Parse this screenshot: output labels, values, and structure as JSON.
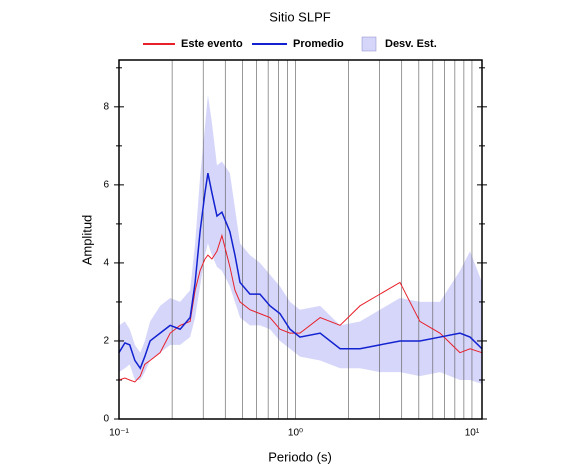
{
  "chart_data": {
    "type": "line",
    "title": "Sitio SLPF",
    "xlabel": "Periodo (s)",
    "ylabel": "Amplitud",
    "xscale": "log",
    "xlim": [
      0.1,
      11.4
    ],
    "ylim": [
      0,
      9.2
    ],
    "xticks": [
      {
        "value": 0.1,
        "label": "10⁻¹"
      },
      {
        "value": 1,
        "label": "10⁰"
      },
      {
        "value": 10,
        "label": "10¹"
      }
    ],
    "xgrid": [
      0.2,
      0.3,
      0.4,
      0.5,
      0.6,
      0.7,
      0.8,
      0.9,
      2,
      3,
      4,
      5,
      6,
      7,
      8,
      9
    ],
    "yticks": [
      0,
      2,
      4,
      6,
      8
    ],
    "yminorticks": [
      1,
      3,
      5,
      7,
      9
    ],
    "x": [
      0.1,
      0.108,
      0.115,
      0.123,
      0.132,
      0.14,
      0.15,
      0.171,
      0.195,
      0.222,
      0.253,
      0.27,
      0.288,
      0.307,
      0.319,
      0.336,
      0.359,
      0.383,
      0.425,
      0.454,
      0.485,
      0.552,
      0.629,
      0.717,
      0.817,
      0.931,
      1.06,
      1.38,
      1.79,
      2.32,
      3.01,
      3.91,
      5.07,
      6.59,
      8.55,
      9.75,
      11.4
    ],
    "series": [
      {
        "name": "Este evento",
        "color": "#e8202a",
        "values": [
          1.0,
          1.05,
          1.0,
          0.95,
          1.1,
          1.4,
          1.5,
          1.7,
          2.2,
          2.4,
          2.5,
          3.3,
          3.8,
          4.1,
          4.2,
          4.1,
          4.3,
          4.7,
          3.9,
          3.3,
          3.0,
          2.8,
          2.7,
          2.6,
          2.3,
          2.2,
          2.2,
          2.6,
          2.4,
          2.9,
          3.2,
          3.5,
          2.5,
          2.2,
          1.7,
          1.8,
          1.7
        ]
      },
      {
        "name": "Promedio",
        "color": "#1222d0",
        "values": [
          1.7,
          1.95,
          1.9,
          1.5,
          1.3,
          1.6,
          2.0,
          2.2,
          2.4,
          2.3,
          2.6,
          3.5,
          4.8,
          5.8,
          6.3,
          5.8,
          5.2,
          5.3,
          4.8,
          4.2,
          3.5,
          3.2,
          3.2,
          2.9,
          2.7,
          2.3,
          2.1,
          2.2,
          1.8,
          1.8,
          1.9,
          2.0,
          2.0,
          2.1,
          2.2,
          2.1,
          1.8
        ]
      }
    ],
    "band": {
      "name": "Desv. Est.",
      "color": "#d6d6fa",
      "lower": [
        1.2,
        1.3,
        1.4,
        1.0,
        1.0,
        1.2,
        1.5,
        1.7,
        1.9,
        1.9,
        2.1,
        2.6,
        3.4,
        4.2,
        4.5,
        4.2,
        3.9,
        3.8,
        3.4,
        3.0,
        2.6,
        2.4,
        2.4,
        2.3,
        2.0,
        1.8,
        1.6,
        1.5,
        1.3,
        1.3,
        1.2,
        1.2,
        1.1,
        1.2,
        1.0,
        1.0,
        0.9
      ],
      "upper": [
        2.4,
        2.5,
        2.3,
        1.9,
        1.7,
        2.0,
        2.5,
        2.9,
        3.1,
        3.0,
        3.3,
        4.5,
        6.2,
        7.5,
        8.3,
        7.6,
        6.5,
        6.6,
        6.3,
        5.4,
        4.5,
        4.2,
        4.0,
        3.7,
        3.4,
        3.0,
        2.8,
        2.9,
        2.4,
        2.5,
        2.8,
        3.1,
        3.0,
        3.0,
        3.8,
        4.3,
        3.5
      ]
    }
  }
}
